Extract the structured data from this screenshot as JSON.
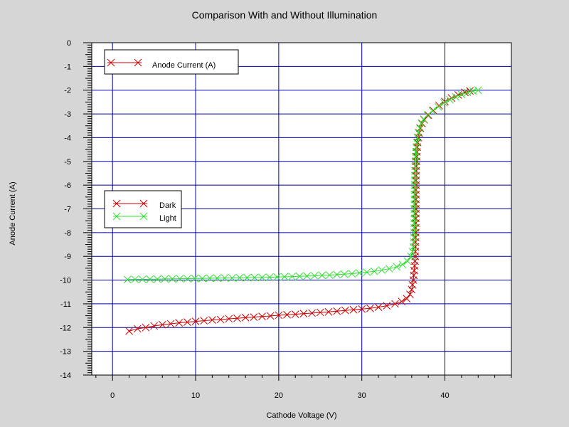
{
  "chart_data": {
    "type": "line",
    "title": "Comparison With and Without Illumination",
    "xlabel": "Cathode Voltage (V)",
    "ylabel": "Anode Current (A)",
    "xlim": [
      -2.5,
      48
    ],
    "ylim": [
      -14,
      0
    ],
    "x_ticks": [
      0,
      10,
      20,
      30,
      40
    ],
    "y_ticks": [
      0,
      -1,
      -2,
      -3,
      -4,
      -5,
      -6,
      -7,
      -8,
      -9,
      -10,
      -11,
      -12,
      -13,
      -14
    ],
    "grid": true,
    "legend_boxes": [
      {
        "placement": "top-left",
        "entries": [
          {
            "label": "Anode Current (A)",
            "color": "#cc0000"
          }
        ]
      },
      {
        "placement": "middle-left",
        "entries": [
          {
            "label": "Dark",
            "color": "#cc0000"
          },
          {
            "label": "Light",
            "color": "#33dd33"
          }
        ]
      }
    ],
    "series": [
      {
        "name": "Dark",
        "color": "#cc0000",
        "points": [
          [
            2.0,
            -12.15
          ],
          [
            3.0,
            -12.05
          ],
          [
            4.0,
            -12.0
          ],
          [
            5.0,
            -11.93
          ],
          [
            6.0,
            -11.88
          ],
          [
            7.0,
            -11.84
          ],
          [
            8.0,
            -11.8
          ],
          [
            9.0,
            -11.77
          ],
          [
            10.0,
            -11.74
          ],
          [
            11.0,
            -11.71
          ],
          [
            12.0,
            -11.68
          ],
          [
            13.0,
            -11.66
          ],
          [
            14.0,
            -11.63
          ],
          [
            15.0,
            -11.61
          ],
          [
            16.0,
            -11.58
          ],
          [
            17.0,
            -11.56
          ],
          [
            18.0,
            -11.53
          ],
          [
            19.0,
            -11.51
          ],
          [
            20.0,
            -11.48
          ],
          [
            21.0,
            -11.46
          ],
          [
            22.0,
            -11.44
          ],
          [
            23.0,
            -11.41
          ],
          [
            24.0,
            -11.39
          ],
          [
            25.0,
            -11.36
          ],
          [
            26.0,
            -11.34
          ],
          [
            27.0,
            -11.31
          ],
          [
            28.0,
            -11.28
          ],
          [
            29.0,
            -11.25
          ],
          [
            30.0,
            -11.22
          ],
          [
            31.0,
            -11.19
          ],
          [
            32.0,
            -11.14
          ],
          [
            33.0,
            -11.08
          ],
          [
            34.0,
            -11.0
          ],
          [
            34.8,
            -10.9
          ],
          [
            35.4,
            -10.78
          ],
          [
            35.8,
            -10.6
          ],
          [
            36.0,
            -10.4
          ],
          [
            36.1,
            -10.2
          ],
          [
            36.2,
            -10.0
          ],
          [
            36.25,
            -9.8
          ],
          [
            36.3,
            -9.6
          ],
          [
            36.35,
            -9.4
          ],
          [
            36.4,
            -9.2
          ],
          [
            36.42,
            -9.0
          ],
          [
            36.44,
            -8.8
          ],
          [
            36.45,
            -8.6
          ],
          [
            36.46,
            -8.4
          ],
          [
            36.47,
            -8.2
          ],
          [
            36.48,
            -8.0
          ],
          [
            36.48,
            -7.8
          ],
          [
            36.49,
            -7.6
          ],
          [
            36.49,
            -7.4
          ],
          [
            36.5,
            -7.2
          ],
          [
            36.5,
            -7.0
          ],
          [
            36.5,
            -6.8
          ],
          [
            36.5,
            -6.6
          ],
          [
            36.51,
            -6.4
          ],
          [
            36.51,
            -6.2
          ],
          [
            36.52,
            -6.0
          ],
          [
            36.52,
            -5.8
          ],
          [
            36.53,
            -5.6
          ],
          [
            36.54,
            -5.4
          ],
          [
            36.55,
            -5.2
          ],
          [
            36.57,
            -5.0
          ],
          [
            36.59,
            -4.8
          ],
          [
            36.62,
            -4.6
          ],
          [
            36.66,
            -4.4
          ],
          [
            36.72,
            -4.2
          ],
          [
            36.8,
            -4.0
          ],
          [
            36.9,
            -3.8
          ],
          [
            37.05,
            -3.6
          ],
          [
            37.25,
            -3.4
          ],
          [
            37.5,
            -3.25
          ],
          [
            38.0,
            -3.05
          ],
          [
            38.6,
            -2.85
          ],
          [
            39.3,
            -2.65
          ],
          [
            40.0,
            -2.48
          ],
          [
            40.8,
            -2.33
          ],
          [
            41.6,
            -2.2
          ],
          [
            42.4,
            -2.09
          ],
          [
            43.0,
            -2.03
          ]
        ]
      },
      {
        "name": "Light",
        "color": "#33dd33",
        "points": [
          [
            1.8,
            -9.98
          ],
          [
            2.7,
            -9.97
          ],
          [
            3.6,
            -9.97
          ],
          [
            4.5,
            -9.96
          ],
          [
            5.4,
            -9.96
          ],
          [
            6.3,
            -9.95
          ],
          [
            7.2,
            -9.95
          ],
          [
            8.1,
            -9.94
          ],
          [
            9.0,
            -9.94
          ],
          [
            9.9,
            -9.93
          ],
          [
            10.8,
            -9.93
          ],
          [
            11.7,
            -9.92
          ],
          [
            12.6,
            -9.92
          ],
          [
            13.5,
            -9.91
          ],
          [
            14.4,
            -9.91
          ],
          [
            15.3,
            -9.9
          ],
          [
            16.2,
            -9.9
          ],
          [
            17.1,
            -9.89
          ],
          [
            18.0,
            -9.89
          ],
          [
            18.9,
            -9.88
          ],
          [
            19.8,
            -9.87
          ],
          [
            20.7,
            -9.86
          ],
          [
            21.6,
            -9.85
          ],
          [
            22.5,
            -9.84
          ],
          [
            23.4,
            -9.83
          ],
          [
            24.3,
            -9.82
          ],
          [
            25.2,
            -9.8
          ],
          [
            26.1,
            -9.79
          ],
          [
            27.0,
            -9.77
          ],
          [
            27.9,
            -9.75
          ],
          [
            28.8,
            -9.73
          ],
          [
            29.7,
            -9.7
          ],
          [
            30.6,
            -9.67
          ],
          [
            31.5,
            -9.63
          ],
          [
            32.4,
            -9.58
          ],
          [
            33.3,
            -9.52
          ],
          [
            34.2,
            -9.44
          ],
          [
            34.9,
            -9.34
          ],
          [
            35.5,
            -9.2
          ],
          [
            35.9,
            -9.0
          ],
          [
            36.1,
            -8.8
          ],
          [
            36.2,
            -8.6
          ],
          [
            36.25,
            -8.4
          ],
          [
            36.28,
            -8.2
          ],
          [
            36.3,
            -8.0
          ],
          [
            36.31,
            -7.8
          ],
          [
            36.32,
            -7.6
          ],
          [
            36.33,
            -7.4
          ],
          [
            36.33,
            -7.2
          ],
          [
            36.34,
            -7.0
          ],
          [
            36.34,
            -6.8
          ],
          [
            36.35,
            -6.6
          ],
          [
            36.35,
            -6.4
          ],
          [
            36.36,
            -6.2
          ],
          [
            36.37,
            -6.0
          ],
          [
            36.38,
            -5.8
          ],
          [
            36.39,
            -5.6
          ],
          [
            36.4,
            -5.4
          ],
          [
            36.42,
            -5.2
          ],
          [
            36.44,
            -5.0
          ],
          [
            36.47,
            -4.8
          ],
          [
            36.5,
            -4.6
          ],
          [
            36.55,
            -4.4
          ],
          [
            36.62,
            -4.2
          ],
          [
            36.7,
            -4.0
          ],
          [
            36.82,
            -3.8
          ],
          [
            36.97,
            -3.6
          ],
          [
            37.18,
            -3.4
          ],
          [
            37.45,
            -3.22
          ],
          [
            37.9,
            -3.05
          ],
          [
            38.5,
            -2.87
          ],
          [
            39.2,
            -2.7
          ],
          [
            39.9,
            -2.53
          ],
          [
            40.6,
            -2.4
          ],
          [
            41.3,
            -2.28
          ],
          [
            42.0,
            -2.18
          ],
          [
            42.7,
            -2.1
          ],
          [
            43.4,
            -2.04
          ],
          [
            44.0,
            -2.0
          ]
        ]
      }
    ]
  }
}
